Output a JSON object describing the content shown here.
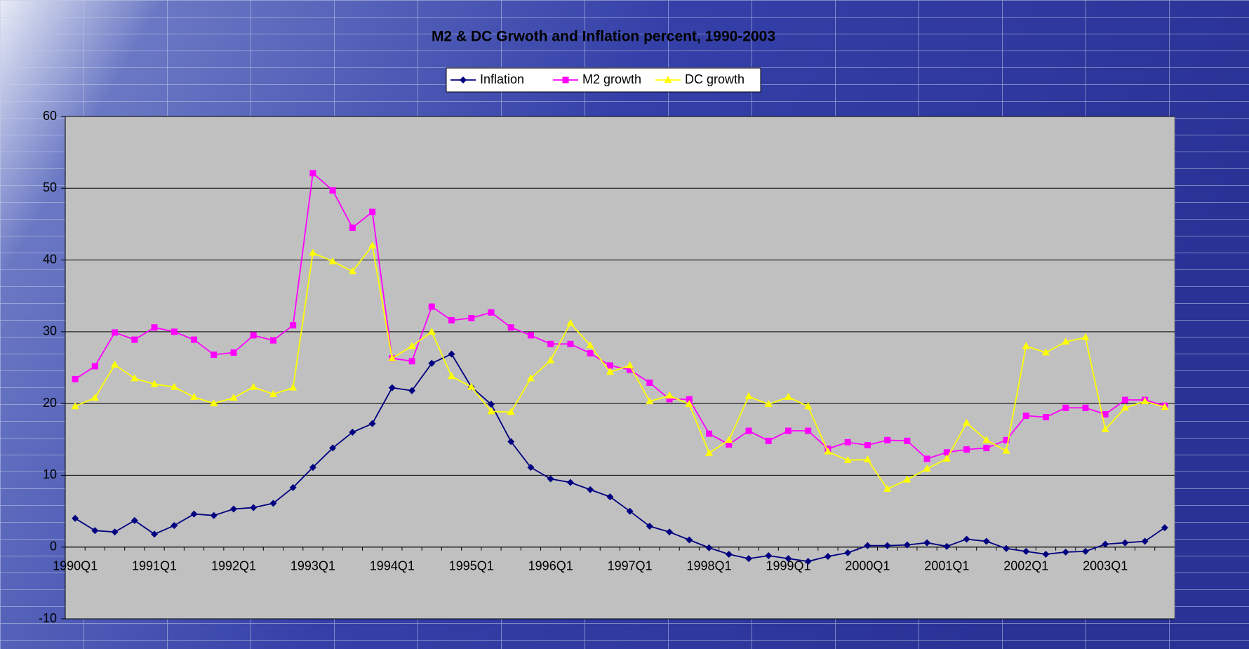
{
  "chart_data": {
    "type": "line",
    "title": "M2 & DC Grwoth and Inflation percent, 1990-2003",
    "categories": [
      "1990Q1",
      null,
      null,
      null,
      "1991Q1",
      null,
      null,
      null,
      "1992Q1",
      null,
      null,
      null,
      "1993Q1",
      null,
      null,
      null,
      "1994Q1",
      null,
      null,
      null,
      "1995Q1",
      null,
      null,
      null,
      "1996Q1",
      null,
      null,
      null,
      "1997Q1",
      null,
      null,
      null,
      "1998Q1",
      null,
      null,
      null,
      "1999Q1",
      null,
      null,
      null,
      "2000Q1",
      null,
      null,
      null,
      "2001Q1",
      null,
      null,
      null,
      "2002Q1",
      null,
      null,
      null,
      "2003Q1",
      null,
      null,
      null
    ],
    "series": [
      {
        "name": "Inflation",
        "color": "#000080",
        "marker": "diamond",
        "values": [
          4.0,
          2.3,
          2.1,
          3.7,
          1.8,
          3.0,
          4.6,
          4.4,
          5.3,
          5.5,
          6.1,
          8.3,
          11.1,
          13.8,
          16.0,
          17.2,
          22.2,
          21.8,
          25.6,
          26.9,
          22.3,
          19.9,
          14.7,
          11.1,
          9.5,
          9.0,
          8.0,
          7.0,
          5.0,
          2.9,
          2.1,
          1.0,
          -0.1,
          -1.0,
          -1.6,
          -1.2,
          -1.6,
          -2.0,
          -1.3,
          -0.8,
          0.2,
          0.2,
          0.3,
          0.6,
          0.1,
          1.1,
          0.8,
          -0.2,
          -0.6,
          -1.0,
          -0.7,
          -0.6,
          0.4,
          0.6,
          0.8,
          2.7
        ]
      },
      {
        "name": "M2 growth",
        "color": "#ff00ff",
        "marker": "square",
        "values": [
          23.4,
          25.2,
          29.9,
          28.9,
          30.6,
          30.0,
          28.9,
          26.8,
          27.1,
          29.5,
          28.8,
          30.9,
          52.1,
          49.7,
          44.5,
          46.7,
          26.3,
          25.9,
          33.5,
          31.6,
          31.9,
          32.7,
          30.6,
          29.5,
          28.3,
          28.3,
          27.0,
          25.3,
          24.7,
          22.9,
          20.6,
          20.6,
          15.8,
          14.3,
          16.2,
          14.8,
          16.2,
          16.2,
          13.7,
          14.6,
          14.2,
          14.9,
          14.8,
          12.3,
          13.2,
          13.6,
          13.8,
          14.9,
          18.3,
          18.1,
          19.4,
          19.4,
          18.5,
          20.5,
          20.5,
          19.7
        ]
      },
      {
        "name": "DC growth",
        "color": "#ffff00",
        "marker": "triangle",
        "values": [
          19.6,
          20.8,
          25.4,
          23.5,
          22.7,
          22.3,
          20.9,
          20.0,
          20.8,
          22.3,
          21.3,
          22.2,
          41.0,
          39.8,
          38.4,
          42.0,
          26.3,
          28.0,
          30.0,
          23.8,
          22.3,
          18.9,
          18.8,
          23.5,
          26.0,
          31.2,
          28.1,
          24.4,
          25.3,
          20.3,
          21.1,
          19.9,
          13.1,
          14.9,
          21.0,
          19.9,
          20.9,
          19.6,
          13.3,
          12.1,
          12.2,
          8.1,
          9.4,
          10.9,
          12.3,
          17.3,
          14.9,
          13.4,
          28.0,
          27.1,
          28.6,
          29.2,
          16.4,
          19.4,
          20.3,
          19.5
        ]
      }
    ],
    "ylim": [
      -10,
      60
    ],
    "yticks": [
      -10,
      0,
      10,
      20,
      30,
      40,
      50,
      60
    ],
    "grid": true,
    "legend": "top",
    "plot_background": "#c0c0c0"
  }
}
